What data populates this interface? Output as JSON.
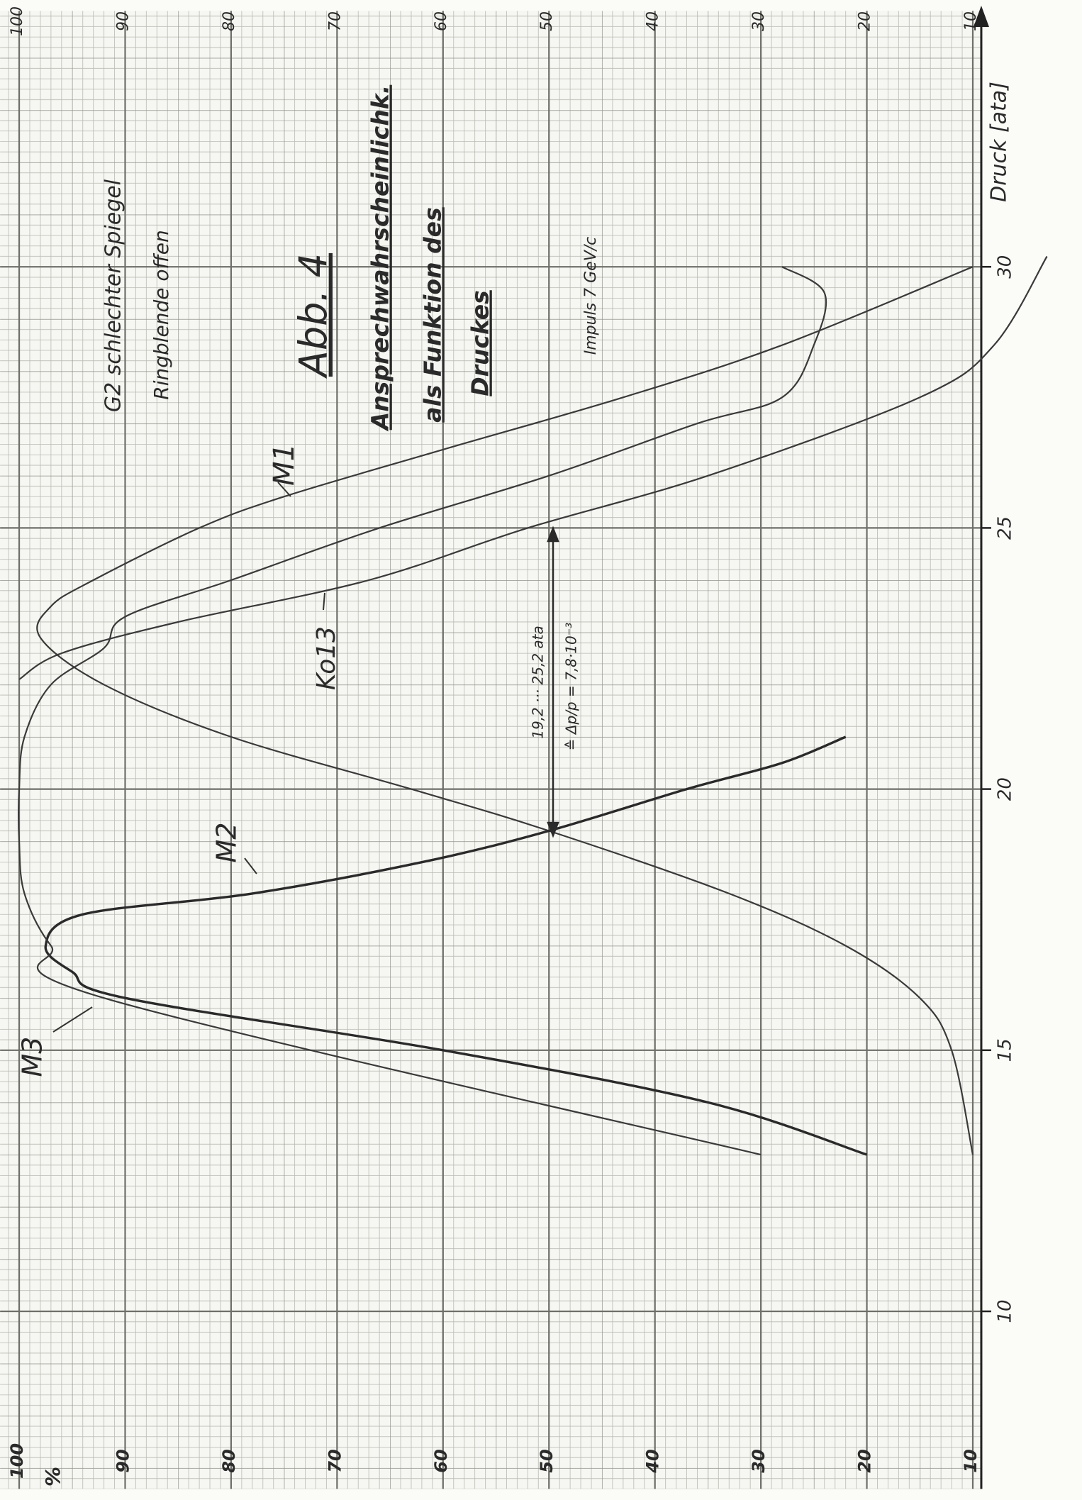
{
  "chart_data": {
    "type": "line",
    "title": "Abb. 4",
    "subtitle": [
      "Ansprechwahrscheinlichk.",
      "als Funktion des",
      "Druckes"
    ],
    "annotations": [
      "G2 schlechter Spiegel",
      "Ringblende offen",
      "Impuls 7 GeV/c",
      "19,2 ··· 25,2 ata",
      "≙ Δp/p = 7,8·10⁻³"
    ],
    "x_label": "Druck [ata]",
    "y_label": "%",
    "xlim": [
      6.6,
      34.9
    ],
    "xticks": [
      10,
      15,
      20,
      25,
      30
    ],
    "ylim": [
      9.2,
      101.8
    ],
    "yticks": [
      10,
      20,
      30,
      40,
      50,
      60,
      70,
      80,
      90,
      100
    ],
    "grid": true,
    "series": [
      {
        "name": "M1",
        "color": "#3a3a3a",
        "x": [
          13,
          15,
          16,
          17,
          18,
          19.2,
          20,
          21,
          22,
          22.9,
          23.5,
          24,
          25,
          25.6,
          26.5,
          27.5,
          28.5,
          30
        ],
        "values": [
          10,
          12,
          15,
          22,
          33,
          50,
          63,
          80,
          92,
          98,
          97,
          93,
          83,
          75,
          60,
          43,
          28,
          10
        ]
      },
      {
        "name": "M2",
        "color": "#2a2a2a",
        "x": [
          13,
          14,
          15,
          16,
          16.5,
          17,
          17.6,
          18,
          18.6,
          19.2,
          20,
          20.5,
          21
        ],
        "values": [
          20,
          35,
          60,
          90,
          95,
          97.5,
          94,
          78,
          62,
          50,
          37,
          28,
          22
        ]
      },
      {
        "name": "M3",
        "color": "#3a3a3a",
        "x": [
          13,
          16,
          17,
          18,
          19,
          20,
          21,
          22,
          22.7,
          23.3,
          24,
          25,
          26,
          27,
          27.5,
          28.5,
          29.5,
          30
        ],
        "values": [
          30,
          92,
          97,
          99.5,
          100,
          100,
          99.5,
          97,
          92,
          90,
          80,
          66,
          50,
          36,
          28,
          25,
          24,
          28
        ]
      },
      {
        "name": "Ko13",
        "color": "#3a3a3a",
        "x": [
          22.1,
          22.6,
          23.2,
          24,
          25,
          26,
          27.5,
          28.5,
          30.2
        ],
        "values": [
          100,
          96,
          85,
          67,
          52,
          35,
          15,
          8,
          3
        ]
      }
    ]
  }
}
